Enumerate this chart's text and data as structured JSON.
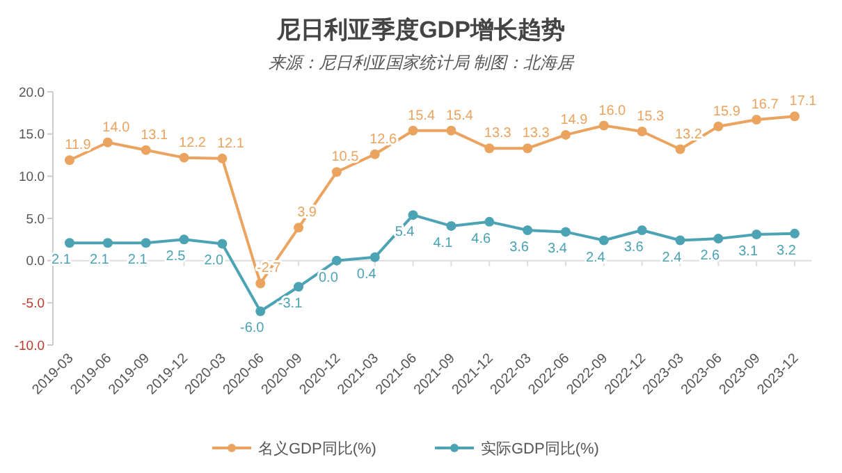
{
  "chart_data": {
    "type": "line",
    "title": "尼日利亚季度GDP增长趋势",
    "subtitle": "来源：尼日利亚国家统计局 制图：北海居",
    "categories": [
      "2019-03",
      "2019-06",
      "2019-09",
      "2019-12",
      "2020-03",
      "2020-06",
      "2020-09",
      "2020-12",
      "2021-03",
      "2021-06",
      "2021-09",
      "2021-12",
      "2022-03",
      "2022-06",
      "2022-09",
      "2022-12",
      "2023-03",
      "2023-06",
      "2023-09",
      "2023-12"
    ],
    "series": [
      {
        "name": "名义GDP同比(%)",
        "color": "#eba45f",
        "values": [
          11.9,
          14.0,
          13.1,
          12.2,
          12.1,
          -2.7,
          3.9,
          10.5,
          12.6,
          15.4,
          15.4,
          13.3,
          13.3,
          14.9,
          16.0,
          15.3,
          13.2,
          15.9,
          16.7,
          17.1
        ],
        "value_labels": [
          "11.9",
          "14.0",
          "13.1",
          "12.2",
          "12.1",
          "-2.7",
          "3.9",
          "10.5",
          "12.6",
          "15.4",
          "15.4",
          "13.3",
          "13.3",
          "14.9",
          "16.0",
          "15.3",
          "13.2",
          "15.9",
          "16.7",
          "17.1"
        ]
      },
      {
        "name": "实际GDP同比(%)",
        "color": "#4ba3b4",
        "values": [
          2.1,
          2.1,
          2.1,
          2.5,
          2.0,
          -6.0,
          -3.1,
          0.0,
          0.4,
          5.4,
          4.1,
          4.6,
          3.6,
          3.4,
          2.4,
          3.6,
          2.4,
          2.6,
          3.1,
          3.2
        ],
        "value_labels": [
          "2.1",
          "2.1",
          "2.1",
          "2.5",
          "2.0",
          "-6.0",
          "-3.1",
          "0.0",
          "0.4",
          "5.4",
          "4.1",
          "4.6",
          "3.6",
          "3.4",
          "2.4",
          "3.6",
          "2.4",
          "2.6",
          "3.1",
          "3.2"
        ]
      }
    ],
    "ylim": [
      -10,
      20
    ],
    "yticks": [
      {
        "value": -10,
        "label": "-10.0"
      },
      {
        "value": -5,
        "label": "-5.0"
      },
      {
        "value": 0,
        "label": "0.0"
      },
      {
        "value": 5,
        "label": "5.0"
      },
      {
        "value": 10,
        "label": "10.0"
      },
      {
        "value": 15,
        "label": "15.0"
      },
      {
        "value": 20,
        "label": "20.0"
      }
    ],
    "legend": "bottom",
    "marker": "circle",
    "line_style": "solid"
  }
}
